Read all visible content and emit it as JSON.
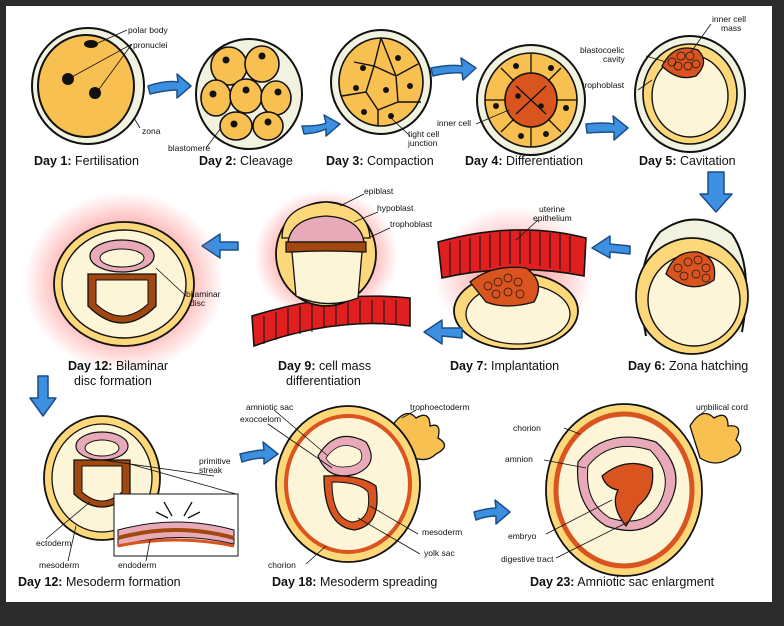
{
  "colors": {
    "yolk": "#f8c050",
    "cell": "#fcd87a",
    "outline": "#111111",
    "mass": "#d9541f",
    "red": "#e02020",
    "pink": "#e8aab8",
    "glow": "#ff5a5a",
    "arrow": "#3d8fe0",
    "cream": "#fdf5d8"
  },
  "stages": [
    {
      "day": "Day 1:",
      "name": "Fertilisation"
    },
    {
      "day": "Day 2:",
      "name": "Cleavage"
    },
    {
      "day": "Day 3:",
      "name": "Compaction"
    },
    {
      "day": "Day 4:",
      "name": "Differentiation"
    },
    {
      "day": "Day 5:",
      "name": "Cavitation"
    },
    {
      "day": "Day 6:",
      "name": "Zona hatching"
    },
    {
      "day": "Day 7:",
      "name": "Implantation"
    },
    {
      "day": "Day 9:",
      "name": "cell mass",
      "name2": "differentiation"
    },
    {
      "day": "Day 12:",
      "name": "Bilaminar",
      "name2": "disc formation"
    },
    {
      "day": "Day 12:",
      "name": "Mesoderm formation"
    },
    {
      "day": "Day 18:",
      "name": "Mesoderm spreading"
    },
    {
      "day": "Day 23:",
      "name": "Amniotic sac enlargment"
    }
  ],
  "labels": {
    "polar_body": "polar body",
    "pronuclei": "pronuclei",
    "zona": "zona",
    "blastomere": "blastomere",
    "tight_cell": "tight cell",
    "junction": "junction",
    "inner_cell": "inner cell",
    "inner_cell_mass_1": "inner cell",
    "inner_cell_mass_2": "mass",
    "blastocoelic_1": "blastocoelic",
    "blastocoelic_2": "cavity",
    "trophoblast": "trophoblast",
    "uterine_1": "uterine",
    "uterine_2": "epithelium",
    "epiblast": "epiblast",
    "hypoblast": "hypoblast",
    "trophoblast9": "trophoblast",
    "bilaminar_1": "bilaminar",
    "bilaminar_2": "disc",
    "primitive_1": "primitive",
    "primitive_2": "streak",
    "ectoderm": "ectoderm",
    "mesoderm": "mesoderm",
    "endoderm": "endoderm",
    "amniotic_sac": "amniotic sac",
    "exocoelom": "exocoelom",
    "trophoectoderm": "trophoectoderm",
    "mesoderm18": "mesoderm",
    "yolk_sac": "yolk sac",
    "chorion18": "chorion",
    "chorion23": "chorion",
    "amnion": "amnion",
    "umbilical_cord": "umbilical cord",
    "embryo": "embryo",
    "digestive_tract": "digestive tract"
  }
}
